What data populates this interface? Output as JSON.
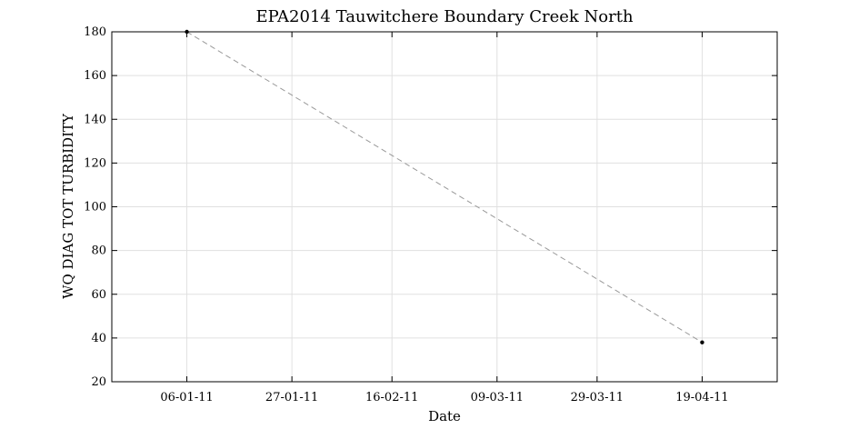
{
  "chart_data": {
    "type": "line",
    "title": "EPA2014 Tauwitchere Boundary Creek North",
    "xlabel": "Date",
    "ylabel": "WQ DIAG TOT TURBIDITY",
    "x_tick_labels": [
      "06-01-11",
      "27-01-11",
      "16-02-11",
      "09-03-11",
      "29-03-11",
      "19-04-11"
    ],
    "x_tick_dates": [
      "2011-01-06",
      "2011-01-27",
      "2011-02-16",
      "2011-03-09",
      "2011-03-29",
      "2011-04-19"
    ],
    "xlim": [
      "2010-12-22",
      "2011-04-34"
    ],
    "y_ticks": [
      20,
      40,
      60,
      80,
      100,
      120,
      140,
      160,
      180
    ],
    "ylim": [
      20,
      180
    ],
    "grid": true,
    "series": [
      {
        "x": [
          "2011-01-06",
          "2011-04-19"
        ],
        "values": [
          180,
          38
        ],
        "line_style": "dashed",
        "line_color": "#999999",
        "marker_color": "#000000"
      }
    ]
  }
}
